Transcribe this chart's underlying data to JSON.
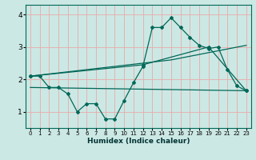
{
  "xlabel": "Humidex (Indice chaleur)",
  "bg_color": "#cce8e4",
  "grid_color": "#e8aaaa",
  "line_color": "#006858",
  "xlim": [
    -0.5,
    23.5
  ],
  "ylim": [
    0.5,
    4.3
  ],
  "xticks": [
    0,
    1,
    2,
    3,
    4,
    5,
    6,
    7,
    8,
    9,
    10,
    11,
    12,
    13,
    14,
    15,
    16,
    17,
    18,
    19,
    20,
    21,
    22,
    23
  ],
  "yticks": [
    1,
    2,
    3,
    4
  ],
  "line1_x": [
    0,
    1,
    2,
    3,
    4,
    5,
    6,
    7,
    8,
    9,
    10,
    11,
    12,
    13,
    14,
    15,
    16,
    17,
    18,
    19,
    20,
    21,
    22,
    23
  ],
  "line1_y": [
    2.1,
    2.1,
    1.75,
    1.75,
    1.55,
    1.0,
    1.25,
    1.25,
    0.78,
    0.78,
    1.35,
    1.9,
    2.4,
    3.6,
    3.6,
    3.9,
    3.6,
    3.3,
    3.05,
    2.95,
    3.0,
    2.3,
    1.8,
    1.65
  ],
  "line2_x": [
    0,
    12,
    19,
    23
  ],
  "line2_y": [
    2.1,
    2.45,
    3.0,
    1.65
  ],
  "line3_x": [
    0,
    15,
    23
  ],
  "line3_y": [
    2.1,
    2.6,
    3.05
  ],
  "line4_x": [
    0,
    23
  ],
  "line4_y": [
    1.75,
    1.65
  ],
  "spine_color": "#006858"
}
